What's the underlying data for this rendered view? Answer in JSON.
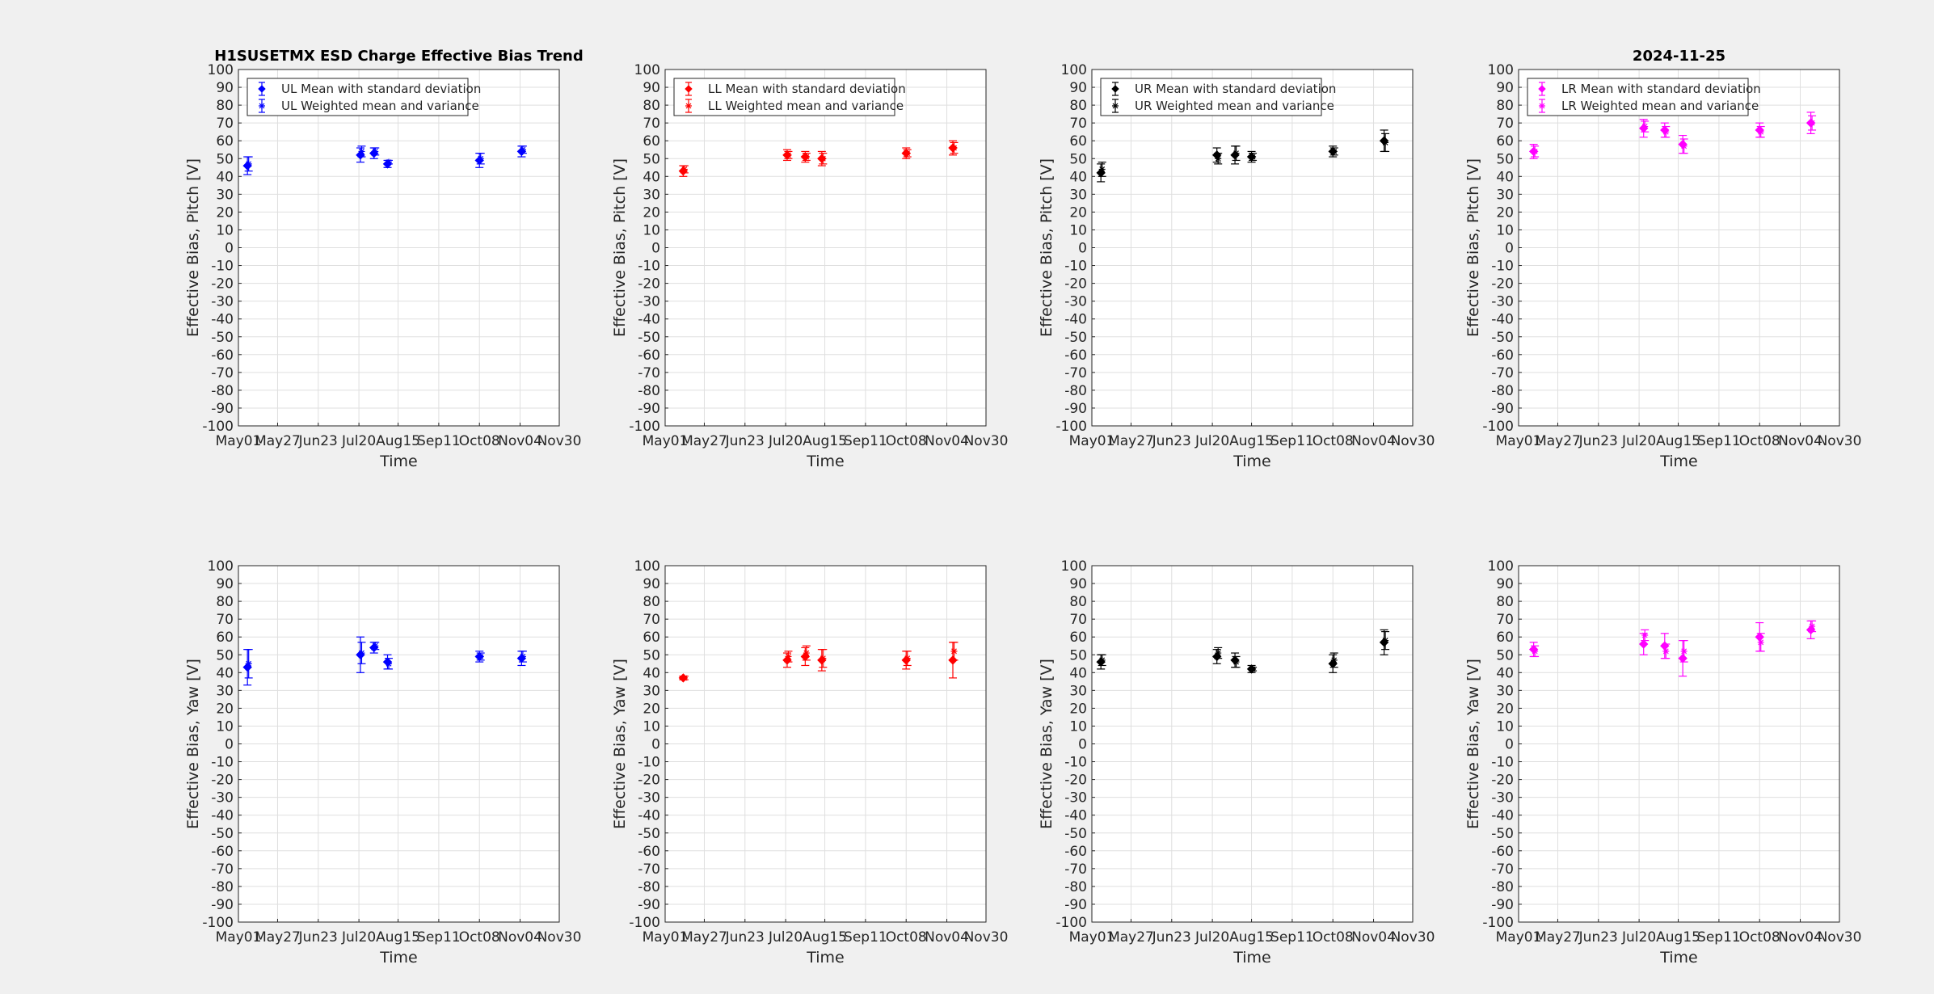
{
  "figure": {
    "background": "#f0f0f0",
    "title_left": "H1SUSETMX ESD Charge Effective Bias Trend",
    "title_right": "2024-11-25"
  },
  "chart_data": [
    {
      "type": "scatter",
      "panel": "UL-pitch",
      "color": "#0000ff",
      "xlabel": "Time",
      "ylabel": "Effective Bias, Pitch [V]",
      "ylim": [
        -100,
        100
      ],
      "yticks_step": 10,
      "xticks": [
        "May01",
        "May27",
        "Jun23",
        "Jul20",
        "Aug15",
        "Sep11",
        "Oct08",
        "Nov04",
        "Nov30"
      ],
      "grid": true,
      "legend_position": "top-left",
      "series": [
        {
          "name": "UL Mean with standard deviation",
          "marker": "diamond",
          "x": [
            "2024-05-07",
            "2024-07-21",
            "2024-07-30",
            "2024-08-08",
            "2024-10-08",
            "2024-11-05"
          ],
          "y": [
            46,
            52,
            53,
            47,
            49,
            54
          ],
          "err": [
            5,
            4,
            3,
            2,
            4,
            3
          ]
        },
        {
          "name": "UL Weighted mean and variance",
          "marker": "asterisk",
          "x": [
            "2024-05-07",
            "2024-07-21",
            "2024-07-30",
            "2024-08-08",
            "2024-10-08",
            "2024-11-05"
          ],
          "y": [
            47,
            54,
            54,
            48,
            50,
            55
          ],
          "err": [
            4,
            3,
            2,
            1,
            3,
            2
          ]
        }
      ]
    },
    {
      "type": "scatter",
      "panel": "LL-pitch",
      "color": "#ff0000",
      "xlabel": "Time",
      "ylabel": "Effective Bias, Pitch [V]",
      "ylim": [
        -100,
        100
      ],
      "yticks_step": 10,
      "xticks": [
        "May01",
        "May27",
        "Jun23",
        "Jul20",
        "Aug15",
        "Sep11",
        "Oct08",
        "Nov04",
        "Nov30"
      ],
      "grid": true,
      "legend_position": "top-left",
      "series": [
        {
          "name": "LL Mean with standard deviation",
          "marker": "diamond",
          "x": [
            "2024-05-13",
            "2024-07-21",
            "2024-08-02",
            "2024-08-13",
            "2024-10-08",
            "2024-11-08"
          ],
          "y": [
            43,
            52,
            51,
            50,
            53,
            56
          ],
          "err": [
            3,
            3,
            3,
            4,
            3,
            4
          ]
        },
        {
          "name": "LL Weighted mean and variance",
          "marker": "asterisk",
          "x": [
            "2024-05-13",
            "2024-07-21",
            "2024-08-02",
            "2024-08-13",
            "2024-10-08",
            "2024-11-08"
          ],
          "y": [
            44,
            52,
            51,
            50,
            53,
            56
          ],
          "err": [
            2,
            2,
            2,
            3,
            2,
            3
          ]
        }
      ]
    },
    {
      "type": "scatter",
      "panel": "UR-pitch",
      "color": "#000000",
      "xlabel": "Time",
      "ylabel": "Effective Bias, Pitch [V]",
      "ylim": [
        -100,
        100
      ],
      "yticks_step": 10,
      "xticks": [
        "May01",
        "May27",
        "Jun23",
        "Jul20",
        "Aug15",
        "Sep11",
        "Oct08",
        "Nov04",
        "Nov30"
      ],
      "grid": true,
      "legend_position": "top-left",
      "series": [
        {
          "name": "UR Mean with standard deviation",
          "marker": "diamond",
          "x": [
            "2024-05-07",
            "2024-07-23",
            "2024-08-04",
            "2024-08-15",
            "2024-10-08",
            "2024-11-11"
          ],
          "y": [
            42,
            52,
            52,
            51,
            54,
            60
          ],
          "err": [
            5,
            4,
            5,
            3,
            3,
            6
          ]
        },
        {
          "name": "UR Weighted mean and variance",
          "marker": "asterisk",
          "x": [
            "2024-05-07",
            "2024-07-23",
            "2024-08-04",
            "2024-08-15",
            "2024-10-08",
            "2024-11-11"
          ],
          "y": [
            44,
            50,
            53,
            51,
            54,
            59
          ],
          "err": [
            4,
            3,
            4,
            2,
            2,
            5
          ]
        }
      ]
    },
    {
      "type": "scatter",
      "panel": "LR-pitch",
      "color": "#ff00ff",
      "xlabel": "Time",
      "ylabel": "Effective Bias, Pitch [V]",
      "ylim": [
        -100,
        100
      ],
      "yticks_step": 10,
      "xticks": [
        "May01",
        "May27",
        "Jun23",
        "Jul20",
        "Aug15",
        "Sep11",
        "Oct08",
        "Nov04",
        "Nov30"
      ],
      "grid": true,
      "legend_position": "top-left",
      "series": [
        {
          "name": "LR Mean with standard deviation",
          "marker": "diamond",
          "x": [
            "2024-05-11",
            "2024-07-23",
            "2024-08-06",
            "2024-08-18",
            "2024-10-08",
            "2024-11-11"
          ],
          "y": [
            54,
            67,
            66,
            58,
            66,
            70
          ],
          "err": [
            4,
            5,
            4,
            5,
            4,
            6
          ]
        },
        {
          "name": "LR Weighted mean and variance",
          "marker": "asterisk",
          "x": [
            "2024-05-11",
            "2024-07-23",
            "2024-08-06",
            "2024-08-18",
            "2024-10-08",
            "2024-11-11"
          ],
          "y": [
            54,
            68,
            65,
            57,
            65,
            70
          ],
          "err": [
            3,
            3,
            3,
            4,
            3,
            4
          ]
        }
      ]
    },
    {
      "type": "scatter",
      "panel": "UL-yaw",
      "color": "#0000ff",
      "xlabel": "Time",
      "ylabel": "Effective Bias, Yaw [V]",
      "ylim": [
        -100,
        100
      ],
      "yticks_step": 10,
      "xticks": [
        "May01",
        "May27",
        "Jun23",
        "Jul20",
        "Aug15",
        "Sep11",
        "Oct08",
        "Nov04",
        "Nov30"
      ],
      "grid": true,
      "series": [
        {
          "name": "UL Mean with standard deviation",
          "marker": "diamond",
          "x": [
            "2024-05-07",
            "2024-07-21",
            "2024-07-30",
            "2024-08-08",
            "2024-10-08",
            "2024-11-05"
          ],
          "y": [
            43,
            50,
            54,
            46,
            49,
            48
          ],
          "err": [
            10,
            10,
            3,
            4,
            3,
            4
          ]
        },
        {
          "name": "UL Weighted mean and variance",
          "marker": "asterisk",
          "x": [
            "2024-05-07",
            "2024-07-21",
            "2024-07-30",
            "2024-08-08",
            "2024-10-08",
            "2024-11-05"
          ],
          "y": [
            45,
            51,
            55,
            45,
            49,
            49
          ],
          "err": [
            8,
            6,
            2,
            3,
            2,
            3
          ]
        }
      ]
    },
    {
      "type": "scatter",
      "panel": "LL-yaw",
      "color": "#ff0000",
      "xlabel": "Time",
      "ylabel": "Effective Bias, Yaw [V]",
      "ylim": [
        -100,
        100
      ],
      "yticks_step": 10,
      "xticks": [
        "May01",
        "May27",
        "Jun23",
        "Jul20",
        "Aug15",
        "Sep11",
        "Oct08",
        "Nov04",
        "Nov30"
      ],
      "grid": true,
      "series": [
        {
          "name": "LL Mean with standard deviation",
          "marker": "diamond",
          "x": [
            "2024-05-13",
            "2024-07-21",
            "2024-08-02",
            "2024-08-13",
            "2024-10-08",
            "2024-11-08"
          ],
          "y": [
            37,
            47,
            49,
            47,
            47,
            47
          ],
          "err": [
            1,
            4,
            5,
            6,
            5,
            10
          ]
        },
        {
          "name": "LL Weighted mean and variance",
          "marker": "asterisk",
          "x": [
            "2024-05-13",
            "2024-07-21",
            "2024-08-02",
            "2024-08-13",
            "2024-10-08",
            "2024-11-08"
          ],
          "y": [
            37,
            49,
            51,
            48,
            48,
            52
          ],
          "err": [
            1,
            3,
            4,
            5,
            4,
            5
          ]
        }
      ]
    },
    {
      "type": "scatter",
      "panel": "UR-yaw",
      "color": "#000000",
      "xlabel": "Time",
      "ylabel": "Effective Bias, Yaw [V]",
      "ylim": [
        -100,
        100
      ],
      "yticks_step": 10,
      "xticks": [
        "May01",
        "May27",
        "Jun23",
        "Jul20",
        "Aug15",
        "Sep11",
        "Oct08",
        "Nov04",
        "Nov30"
      ],
      "grid": true,
      "series": [
        {
          "name": "UR Mean with standard deviation",
          "marker": "diamond",
          "x": [
            "2024-05-07",
            "2024-07-23",
            "2024-08-04",
            "2024-08-15",
            "2024-10-08",
            "2024-11-11"
          ],
          "y": [
            46,
            49,
            47,
            42,
            45,
            57
          ],
          "err": [
            4,
            4,
            4,
            2,
            5,
            7
          ]
        },
        {
          "name": "UR Weighted mean and variance",
          "marker": "asterisk",
          "x": [
            "2024-05-07",
            "2024-07-23",
            "2024-08-04",
            "2024-08-15",
            "2024-10-08",
            "2024-11-11"
          ],
          "y": [
            47,
            51,
            46,
            42,
            47,
            58
          ],
          "err": [
            3,
            3,
            3,
            1,
            4,
            5
          ]
        }
      ]
    },
    {
      "type": "scatter",
      "panel": "LR-yaw",
      "color": "#ff00ff",
      "xlabel": "Time",
      "ylabel": "Effective Bias, Yaw [V]",
      "ylim": [
        -100,
        100
      ],
      "yticks_step": 10,
      "xticks": [
        "May01",
        "May27",
        "Jun23",
        "Jul20",
        "Aug15",
        "Sep11",
        "Oct08",
        "Nov04",
        "Nov30"
      ],
      "grid": true,
      "series": [
        {
          "name": "LR Mean with standard deviation",
          "marker": "diamond",
          "x": [
            "2024-05-11",
            "2024-07-23",
            "2024-08-06",
            "2024-08-18",
            "2024-10-08",
            "2024-11-11"
          ],
          "y": [
            53,
            56,
            55,
            48,
            60,
            64
          ],
          "err": [
            4,
            6,
            7,
            10,
            8,
            5
          ]
        },
        {
          "name": "LR Weighted mean and variance",
          "marker": "asterisk",
          "x": [
            "2024-05-11",
            "2024-07-23",
            "2024-08-06",
            "2024-08-18",
            "2024-10-08",
            "2024-11-11"
          ],
          "y": [
            52,
            61,
            52,
            52,
            57,
            66
          ],
          "err": [
            3,
            3,
            4,
            6,
            5,
            3
          ]
        }
      ]
    }
  ]
}
